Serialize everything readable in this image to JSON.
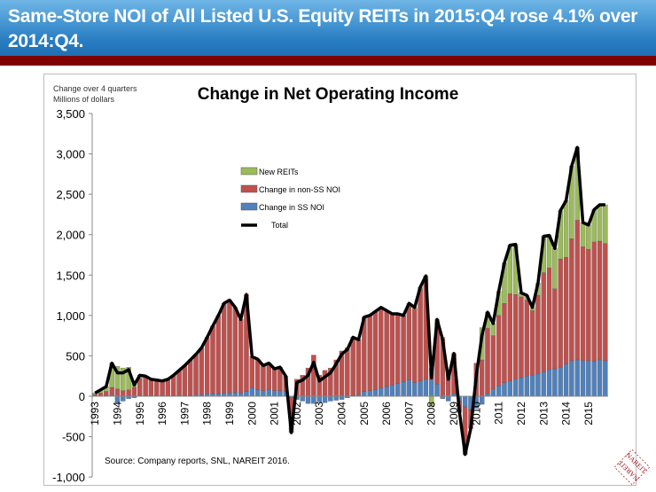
{
  "header": {
    "title": "Same-Store NOI of All Listed U.S. Equity REITs in 2015:Q4 rose 4.1% over 2014:Q4."
  },
  "logo": "NAREIT",
  "chart_data": {
    "type": "bar",
    "title": "Change in Net Operating Income",
    "ylabel_lines": [
      "Change over 4 quarters",
      "Millions of dollars"
    ],
    "source": "Source: Company reports, SNL, NAREIT 2016.",
    "ylim": [
      -1000,
      3500
    ],
    "yticks": [
      -1000,
      -500,
      0,
      500,
      1000,
      1500,
      2000,
      2500,
      3000,
      3500
    ],
    "ytick_labels": [
      "-1,000",
      "-500",
      "0",
      "500",
      "1,000",
      "1,500",
      "2,000",
      "2,500",
      "3,000",
      "3,500"
    ],
    "xtick_labels": [
      "1993",
      "1994",
      "1995",
      "1996",
      "1997",
      "1998",
      "1999",
      "2000",
      "2001",
      "2002",
      "2003",
      "2004",
      "2005",
      "2006",
      "2007",
      "2008",
      "2009",
      "2010",
      "2011",
      "2012",
      "2013",
      "2014",
      "2015"
    ],
    "start": "1993:Q1",
    "frequency": "quarterly",
    "legend": [
      "New REITs",
      "Change in non-SS NOI",
      "Change in SS NOI",
      "Total"
    ],
    "colors": {
      "new": "#9bbb59",
      "nonss": "#c0504d",
      "ss": "#4f81bd",
      "total": "#000000"
    },
    "total": [
      40,
      80,
      120,
      410,
      290,
      290,
      330,
      140,
      260,
      250,
      210,
      200,
      190,
      210,
      260,
      320,
      380,
      450,
      520,
      600,
      730,
      870,
      1000,
      1150,
      1190,
      1100,
      950,
      1260,
      490,
      460,
      380,
      410,
      340,
      360,
      250,
      -450,
      170,
      200,
      260,
      420,
      190,
      240,
      290,
      400,
      520,
      580,
      730,
      700,
      980,
      1000,
      1050,
      1100,
      1060,
      1020,
      1020,
      1000,
      1150,
      1100,
      1350,
      1490,
      230,
      950,
      700,
      210,
      530,
      -200,
      -720,
      -400,
      260,
      750,
      1040,
      900,
      1300,
      1650,
      1870,
      1880,
      1280,
      1250,
      1100,
      1400,
      1980,
      1990,
      1830,
      2300,
      2420,
      2850,
      3080,
      2150,
      2120,
      2310,
      2370,
      2370
    ],
    "ss": [
      0,
      0,
      10,
      20,
      -80,
      -60,
      -30,
      -20,
      10,
      10,
      10,
      10,
      10,
      10,
      10,
      10,
      10,
      10,
      20,
      20,
      30,
      30,
      30,
      40,
      40,
      50,
      40,
      60,
      100,
      80,
      70,
      80,
      70,
      70,
      60,
      -20,
      -40,
      -60,
      -90,
      -90,
      -70,
      -80,
      -60,
      -50,
      -40,
      -20,
      10,
      20,
      60,
      70,
      80,
      100,
      120,
      140,
      160,
      180,
      200,
      170,
      190,
      210,
      200,
      150,
      -30,
      -60,
      30,
      -60,
      -130,
      -170,
      -150,
      -100,
      30,
      90,
      130,
      170,
      190,
      210,
      230,
      250,
      260,
      280,
      300,
      330,
      340,
      360,
      400,
      440,
      450,
      440,
      440,
      430,
      450,
      440
    ],
    "new": [
      20,
      40,
      60,
      300,
      280,
      280,
      280,
      50,
      40,
      20,
      0,
      0,
      0,
      0,
      0,
      0,
      0,
      0,
      0,
      0,
      0,
      0,
      0,
      0,
      0,
      0,
      0,
      0,
      0,
      0,
      0,
      0,
      0,
      0,
      0,
      0,
      0,
      0,
      0,
      0,
      0,
      0,
      0,
      0,
      0,
      0,
      0,
      0,
      0,
      0,
      0,
      0,
      0,
      0,
      0,
      0,
      30,
      20,
      20,
      40,
      -120,
      40,
      20,
      0,
      0,
      0,
      0,
      0,
      0,
      400,
      200,
      150,
      300,
      500,
      600,
      620,
      50,
      60,
      40,
      150,
      450,
      400,
      500,
      600,
      700,
      900,
      900,
      300,
      300,
      400,
      450,
      480
    ]
  }
}
